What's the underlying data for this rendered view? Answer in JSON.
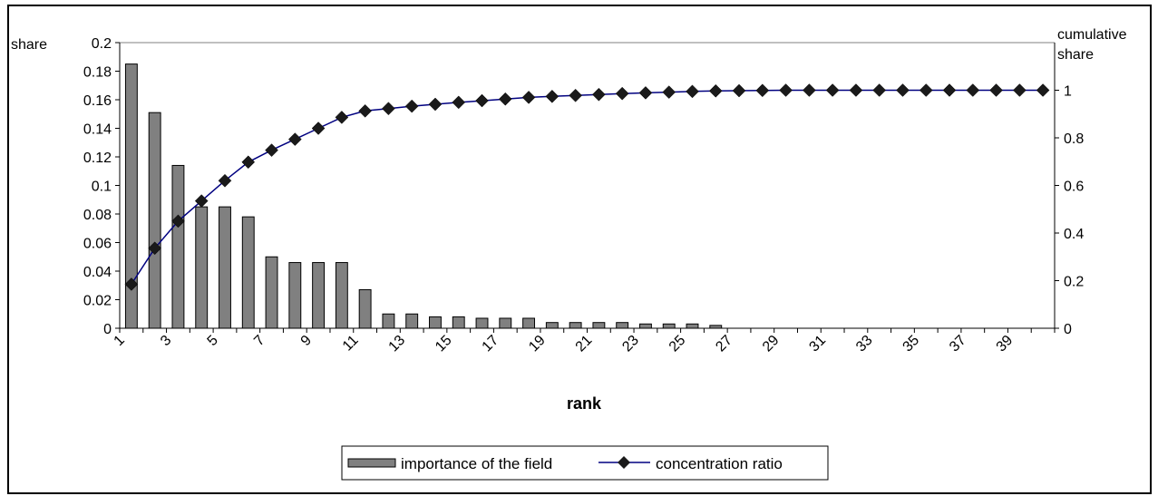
{
  "chart_data": {
    "type": "bar",
    "xlabel": "rank",
    "ylabel_left": "share",
    "ylabel_right": "cumulative share",
    "ylim_left": [
      0,
      0.2
    ],
    "ylim_right": [
      0,
      1.2
    ],
    "yticks_left": [
      "0",
      "0.02",
      "0.04",
      "0.06",
      "0.08",
      "0.1",
      "0.12",
      "0.14",
      "0.16",
      "0.18",
      "0.2"
    ],
    "yticks_right": [
      "0",
      "0.2",
      "0.4",
      "0.6",
      "0.8",
      "1"
    ],
    "categories": [
      "1",
      "2",
      "3",
      "4",
      "5",
      "6",
      "7",
      "8",
      "9",
      "10",
      "11",
      "12",
      "13",
      "14",
      "15",
      "16",
      "17",
      "18",
      "19",
      "20",
      "21",
      "22",
      "23",
      "24",
      "25",
      "26",
      "27",
      "28",
      "29",
      "30",
      "31",
      "32",
      "33",
      "34",
      "35",
      "36",
      "37",
      "38",
      "39",
      "40"
    ],
    "xtick_labels": [
      "1",
      "3",
      "5",
      "7",
      "9",
      "11",
      "13",
      "15",
      "17",
      "19",
      "21",
      "23",
      "25",
      "27",
      "29",
      "31",
      "33",
      "35",
      "37",
      "39"
    ],
    "series": [
      {
        "name": "importance of the field",
        "type": "bar",
        "axis": "left",
        "color": "#808080",
        "values": [
          0.185,
          0.151,
          0.114,
          0.085,
          0.085,
          0.078,
          0.05,
          0.046,
          0.046,
          0.046,
          0.027,
          0.01,
          0.01,
          0.008,
          0.008,
          0.007,
          0.007,
          0.007,
          0.004,
          0.004,
          0.004,
          0.004,
          0.003,
          0.003,
          0.003,
          0.002,
          0,
          0,
          0,
          0,
          0,
          0,
          0,
          0,
          0,
          0,
          0,
          0,
          0,
          0
        ]
      },
      {
        "name": "concentration ratio",
        "type": "line",
        "axis": "right",
        "color": "#000080",
        "marker": "diamond",
        "values": [
          0.185,
          0.336,
          0.45,
          0.535,
          0.62,
          0.698,
          0.748,
          0.794,
          0.84,
          0.886,
          0.913,
          0.923,
          0.933,
          0.941,
          0.949,
          0.956,
          0.963,
          0.97,
          0.974,
          0.978,
          0.982,
          0.986,
          0.989,
          0.992,
          0.995,
          0.997,
          0.998,
          0.999,
          1,
          1,
          1,
          1,
          1,
          1,
          1,
          1,
          1,
          1,
          1,
          1
        ]
      }
    ],
    "legend_position": "bottom",
    "grid": false
  }
}
